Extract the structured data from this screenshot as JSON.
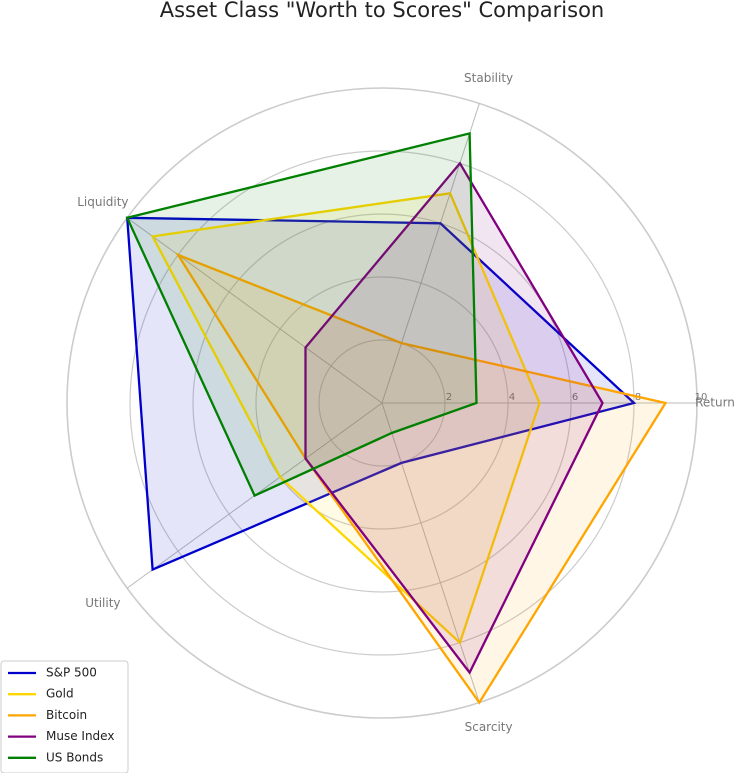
{
  "chart_data": {
    "type": "radar",
    "title": "Asset Class \"Worth to Scores\" Comparison",
    "categories": [
      "Return",
      "Stability",
      "Liquidity",
      "Utility",
      "Scarcity"
    ],
    "ylim": [
      0,
      10
    ],
    "yticks": [
      2,
      4,
      6,
      8,
      10
    ],
    "grid": true,
    "legend": "lower left",
    "series": [
      {
        "name": "S&P 500",
        "color": "#0000cd",
        "values": [
          8,
          6,
          10,
          9,
          2
        ]
      },
      {
        "name": "Gold",
        "color": "#ffd700",
        "values": [
          5,
          7,
          9,
          4,
          8
        ]
      },
      {
        "name": "Bitcoin",
        "color": "#ffa500",
        "values": [
          9,
          2,
          8,
          3,
          10
        ]
      },
      {
        "name": "Muse Index",
        "color": "#800080",
        "values": [
          7,
          8,
          3,
          3,
          9
        ]
      },
      {
        "name": "US Bonds",
        "color": "#008000",
        "values": [
          3,
          9,
          10,
          5,
          1
        ]
      }
    ]
  }
}
